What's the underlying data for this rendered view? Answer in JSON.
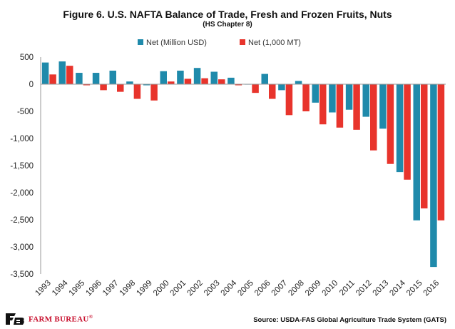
{
  "chart_data": {
    "type": "bar",
    "title": "Figure 6. U.S. NAFTA Balance of Trade, Fresh and Frozen Fruits, Nuts",
    "subtitle": "(HS Chapter 8)",
    "categories": [
      "1993",
      "1994",
      "1995",
      "1996",
      "1997",
      "1998",
      "1999",
      "2000",
      "2001",
      "2002",
      "2003",
      "2004",
      "2005",
      "2006",
      "2007",
      "2008",
      "2009",
      "2010",
      "2011",
      "2012",
      "2013",
      "2014",
      "2015",
      "2016"
    ],
    "series": [
      {
        "name": "Net (Million USD)",
        "color": "#1f8aab",
        "values": [
          400,
          420,
          210,
          210,
          250,
          50,
          -20,
          240,
          250,
          300,
          230,
          120,
          0,
          190,
          -110,
          60,
          -340,
          -520,
          -470,
          -600,
          -820,
          -1620,
          -2510,
          -3370
        ]
      },
      {
        "name": "Net (1,000 MT)",
        "color": "#e8342c",
        "values": [
          180,
          340,
          -20,
          -110,
          -140,
          -270,
          -300,
          50,
          100,
          110,
          90,
          -20,
          -160,
          -270,
          -570,
          -500,
          -740,
          -800,
          -840,
          -1220,
          -1470,
          -1760,
          -2290,
          -2510
        ]
      }
    ],
    "ylim": [
      -3500,
      500
    ],
    "yticks": [
      500,
      0,
      -500,
      -1000,
      -1500,
      -2000,
      -2500,
      -3000,
      -3500
    ],
    "ytick_labels": [
      "500",
      "0",
      "-500",
      "-1,000",
      "-1,500",
      "-2,000",
      "-2,500",
      "-3,000",
      "-3,500"
    ],
    "xlabel": "",
    "ylabel": "",
    "legend_position": "top-center",
    "grid": false
  },
  "brand": {
    "name": "FARM BUREAU",
    "mark": "®"
  },
  "source_text": "Source:  USDA-FAS  Global  Agriculture  Trade  System  (GATS)"
}
